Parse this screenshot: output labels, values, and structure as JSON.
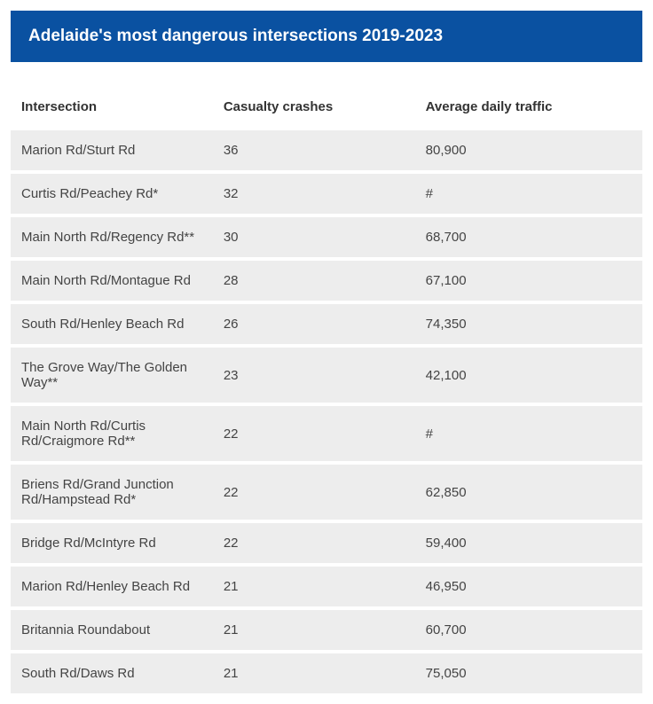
{
  "title": "Adelaide's most dangerous intersections 2019-2023",
  "title_bar": {
    "background_color": "#0a51a1",
    "text_color": "#ffffff"
  },
  "table": {
    "header_background": "#ffffff",
    "row_background": "#ededed",
    "row_border_color": "#ffffff",
    "text_color": "#444444",
    "columns": [
      "Intersection",
      "Casualty crashes",
      "Average daily traffic"
    ],
    "rows": [
      {
        "intersection": "Marion Rd/Sturt Rd",
        "crashes": "36",
        "traffic": "80,900"
      },
      {
        "intersection": "Curtis Rd/Peachey Rd*",
        "crashes": "32",
        "traffic": "#"
      },
      {
        "intersection": "Main North Rd/Regency Rd**",
        "crashes": "30",
        "traffic": "68,700"
      },
      {
        "intersection": "Main North Rd/Montague Rd",
        "crashes": "28",
        "traffic": "67,100"
      },
      {
        "intersection": "South Rd/Henley Beach Rd",
        "crashes": "26",
        "traffic": "74,350"
      },
      {
        "intersection": "The Grove Way/The Golden Way**",
        "crashes": "23",
        "traffic": "42,100"
      },
      {
        "intersection": "Main North Rd/Curtis Rd/Craigmore Rd**",
        "crashes": "22",
        "traffic": "#"
      },
      {
        "intersection": "Briens Rd/Grand Junction Rd/Hampstead Rd*",
        "crashes": "22",
        "traffic": "62,850"
      },
      {
        "intersection": "Bridge Rd/McIntyre Rd",
        "crashes": "22",
        "traffic": "59,400"
      },
      {
        "intersection": "Marion Rd/Henley Beach Rd",
        "crashes": "21",
        "traffic": "46,950"
      },
      {
        "intersection": "Britannia Roundabout",
        "crashes": "21",
        "traffic": "60,700"
      },
      {
        "intersection": "South Rd/Daws Rd",
        "crashes": "21",
        "traffic": "75,050"
      }
    ]
  }
}
